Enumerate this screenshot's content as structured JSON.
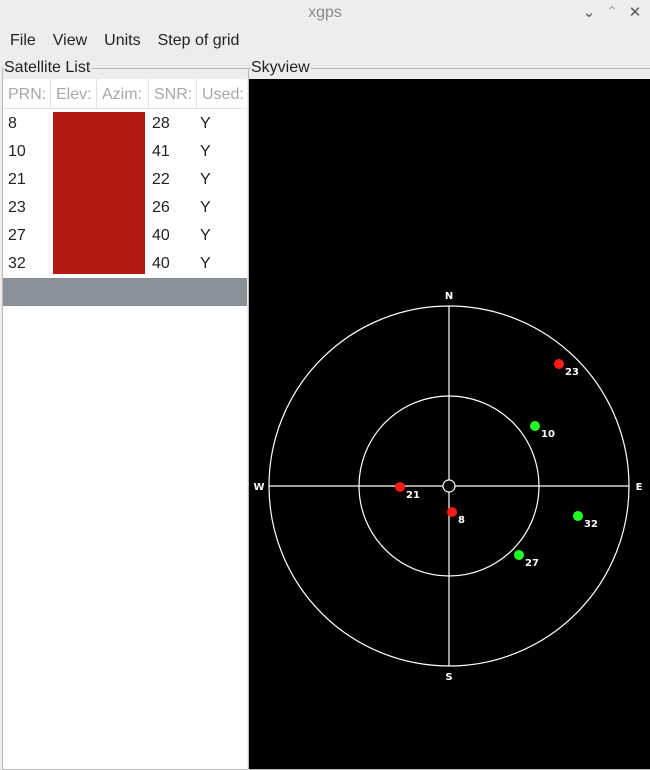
{
  "window": {
    "title": "xgps",
    "minimize_icon": "chevron-down",
    "maximize_icon": "chevron-up",
    "close_icon": "x"
  },
  "menu": [
    "File",
    "View",
    "Units",
    "Step of grid"
  ],
  "satellite_list": {
    "label": "Satellite List",
    "columns": [
      "PRN:",
      "Elev:",
      "Azim:",
      "SNR:",
      "Used:"
    ],
    "rows": [
      {
        "prn": "8",
        "snr": "28",
        "used": "Y"
      },
      {
        "prn": "10",
        "snr": "41",
        "used": "Y"
      },
      {
        "prn": "21",
        "snr": "22",
        "used": "Y"
      },
      {
        "prn": "23",
        "snr": "26",
        "used": "Y"
      },
      {
        "prn": "27",
        "snr": "40",
        "used": "Y"
      },
      {
        "prn": "32",
        "snr": "40",
        "used": "Y"
      }
    ],
    "redaction_color": "#b11b12"
  },
  "skyview": {
    "label": "Skyview",
    "compass": {
      "n": "N",
      "s": "S",
      "e": "E",
      "w": "W"
    },
    "satellites": [
      {
        "prn": "23",
        "color": "#ff1a1a"
      },
      {
        "prn": "10",
        "color": "#22ff22"
      },
      {
        "prn": "21",
        "color": "#ff1a1a"
      },
      {
        "prn": "8",
        "color": "#ff1a1a"
      },
      {
        "prn": "32",
        "color": "#22ff22"
      },
      {
        "prn": "27",
        "color": "#22ff22"
      }
    ]
  }
}
